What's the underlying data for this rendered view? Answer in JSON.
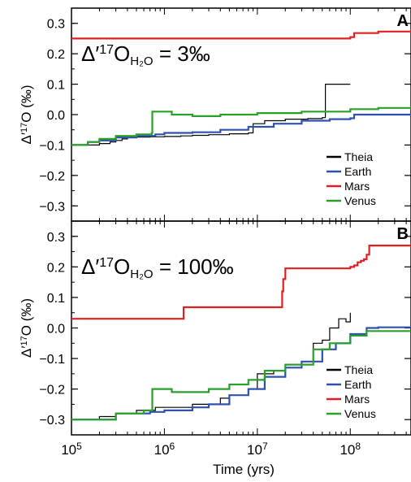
{
  "figure": {
    "x_axis": {
      "label": "Time (yrs)",
      "scale": "log",
      "range": [
        100000,
        450000000
      ],
      "ticks": [
        {
          "value": 100000,
          "base": "10",
          "exp": "5"
        },
        {
          "value": 1000000,
          "base": "10",
          "exp": "6"
        },
        {
          "value": 10000000,
          "base": "10",
          "exp": "7"
        },
        {
          "value": 100000000,
          "base": "10",
          "exp": "8"
        }
      ]
    },
    "y_tick_labels": [
      "0.3",
      "0.2",
      "0.1",
      "0.0",
      "−0.1",
      "−0.2",
      "−0.3"
    ],
    "y_tick_values": [
      0.3,
      0.2,
      0.1,
      0.0,
      -0.1,
      -0.2,
      -0.3
    ]
  },
  "chart_data": [
    {
      "type": "line",
      "panel_letter": "A",
      "annotation": {
        "delta": "Δ′",
        "sup": "17",
        "main": "O",
        "sub": "H₂O",
        "rhs": "= 3‰"
      },
      "ylabel": {
        "pre": "Δ′",
        "sup": "17",
        "post": "O (‰)"
      },
      "ylim": [
        -0.35,
        0.35
      ],
      "grid": false,
      "legend_position": "lower-right",
      "series": [
        {
          "name": "Theia",
          "color": "#000000",
          "x": [
            100000,
            140000,
            200000,
            260000,
            300000,
            350000,
            400000,
            500000,
            700000,
            1000000,
            1500000,
            2000000,
            3000000,
            5000000,
            8000000,
            9000000,
            12000000,
            20000000,
            35000000,
            50000000,
            54000000,
            58000000,
            100000000
          ],
          "y": [
            -0.1,
            -0.1,
            -0.095,
            -0.09,
            -0.085,
            -0.08,
            -0.075,
            -0.074,
            -0.073,
            -0.072,
            -0.07,
            -0.068,
            -0.066,
            -0.063,
            -0.06,
            -0.03,
            -0.02,
            -0.015,
            -0.013,
            -0.01,
            0.1,
            0.1,
            0.1
          ]
        },
        {
          "name": "Earth",
          "color": "#3050b0",
          "x": [
            100000,
            150000,
            200000,
            300000,
            500000,
            800000,
            1000000,
            2000000,
            4000000,
            8000000,
            15000000,
            30000000,
            60000000,
            100000000,
            110000000,
            450000000
          ],
          "y": [
            -0.1,
            -0.09,
            -0.085,
            -0.075,
            -0.07,
            -0.065,
            -0.06,
            -0.058,
            -0.05,
            -0.04,
            -0.03,
            -0.02,
            -0.015,
            -0.012,
            0.0,
            0.0
          ]
        },
        {
          "name": "Mars",
          "color": "#e02020",
          "x": [
            100000,
            3000000,
            20000000,
            100000000,
            110000000,
            200000000,
            450000000
          ],
          "y": [
            0.25,
            0.25,
            0.25,
            0.255,
            0.268,
            0.273,
            0.275
          ]
        },
        {
          "name": "Venus",
          "color": "#2aa02a",
          "x": [
            100000,
            150000,
            200000,
            300000,
            500000,
            730000,
            740000,
            1200000,
            2000000,
            4000000,
            10000000,
            30000000,
            100000000,
            200000000,
            450000000
          ],
          "y": [
            -0.1,
            -0.09,
            -0.08,
            -0.07,
            -0.065,
            -0.06,
            0.01,
            0.0,
            -0.005,
            0.0,
            0.005,
            0.01,
            0.018,
            0.022,
            0.025
          ]
        }
      ]
    },
    {
      "type": "line",
      "panel_letter": "B",
      "annotation": {
        "delta": "Δ′",
        "sup": "17",
        "main": "O",
        "sub": "H₂O",
        "rhs": "= 100‰"
      },
      "ylabel": {
        "pre": "Δ′",
        "sup": "17",
        "post": "O (‰)"
      },
      "ylim": [
        -0.35,
        0.35
      ],
      "grid": false,
      "legend_position": "lower-right",
      "series": [
        {
          "name": "Theia",
          "color": "#000000",
          "x": [
            100000,
            150000,
            200000,
            300000,
            500000,
            800000,
            1000000,
            2000000,
            4000000,
            5000000,
            8000000,
            10000000,
            15000000,
            20000000,
            30000000,
            40000000,
            50000000,
            60000000,
            75000000,
            90000000,
            100000000
          ],
          "y": [
            -0.3,
            -0.3,
            -0.29,
            -0.28,
            -0.27,
            -0.26,
            -0.26,
            -0.25,
            -0.23,
            -0.22,
            -0.2,
            -0.15,
            -0.14,
            -0.12,
            -0.12,
            -0.05,
            -0.04,
            0.0,
            0.03,
            0.02,
            0.05
          ]
        },
        {
          "name": "Earth",
          "color": "#3050b0",
          "x": [
            100000,
            300000,
            700000,
            1000000,
            2000000,
            3000000,
            5000000,
            8000000,
            12000000,
            20000000,
            30000000,
            50000000,
            70000000,
            100000000,
            150000000,
            200000000,
            450000000
          ],
          "y": [
            -0.3,
            -0.28,
            -0.275,
            -0.27,
            -0.26,
            -0.25,
            -0.22,
            -0.2,
            -0.16,
            -0.13,
            -0.11,
            -0.07,
            -0.05,
            -0.02,
            0.0,
            0.002,
            0.002
          ]
        },
        {
          "name": "Mars",
          "color": "#e02020",
          "x": [
            100000,
            1600000,
            1610000,
            18000000,
            18500000,
            19000000,
            20000000,
            60000000,
            100000000,
            110000000,
            120000000,
            130000000,
            140000000,
            150000000,
            160000000,
            450000000
          ],
          "y": [
            0.03,
            0.03,
            0.068,
            0.068,
            0.12,
            0.16,
            0.195,
            0.195,
            0.2,
            0.205,
            0.215,
            0.22,
            0.225,
            0.24,
            0.27,
            0.273
          ]
        },
        {
          "name": "Venus",
          "color": "#2aa02a",
          "x": [
            100000,
            300000,
            600000,
            730000,
            740000,
            1200000,
            2000000,
            3000000,
            5000000,
            8000000,
            12000000,
            20000000,
            40000000,
            60000000,
            100000000,
            150000000,
            200000000,
            450000000
          ],
          "y": [
            -0.3,
            -0.28,
            -0.27,
            -0.27,
            -0.2,
            -0.21,
            -0.21,
            -0.2,
            -0.185,
            -0.17,
            -0.14,
            -0.12,
            -0.07,
            -0.05,
            -0.025,
            -0.01,
            -0.01,
            -0.01
          ]
        }
      ]
    }
  ]
}
